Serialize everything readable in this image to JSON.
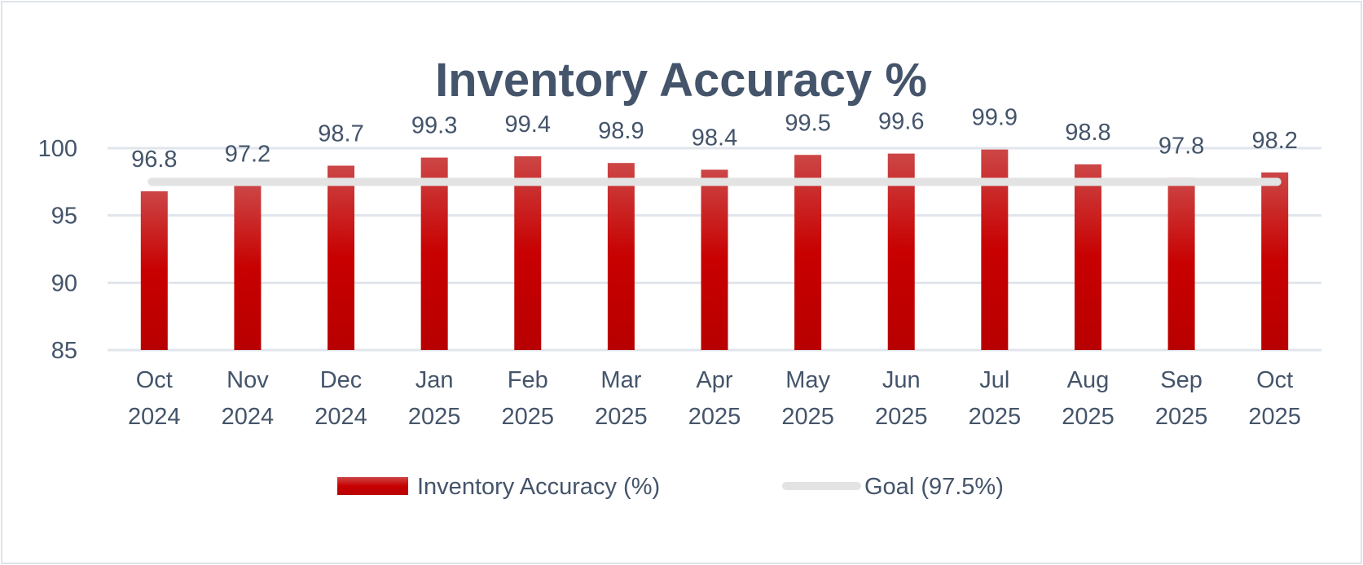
{
  "chart_data": {
    "type": "bar",
    "title": "Inventory Accuracy %",
    "categories": [
      [
        "Oct",
        "2024"
      ],
      [
        "Nov",
        "2024"
      ],
      [
        "Dec",
        "2024"
      ],
      [
        "Jan",
        "2025"
      ],
      [
        "Feb",
        "2025"
      ],
      [
        "Mar",
        "2025"
      ],
      [
        "Apr",
        "2025"
      ],
      [
        "May",
        "2025"
      ],
      [
        "Jun",
        "2025"
      ],
      [
        "Jul",
        "2025"
      ],
      [
        "Aug",
        "2025"
      ],
      [
        "Sep",
        "2025"
      ],
      [
        "Oct",
        "2025"
      ]
    ],
    "series": [
      {
        "name": "Inventory Accuracy (%)",
        "type": "bar",
        "color": "#c00000",
        "values": [
          96.8,
          97.2,
          98.7,
          99.3,
          99.4,
          98.9,
          98.4,
          99.5,
          99.6,
          99.9,
          98.8,
          97.8,
          98.2
        ]
      },
      {
        "name": "Goal (97.5%)",
        "type": "line",
        "color": "#e3e3e3",
        "value": 97.5
      }
    ],
    "ylim": [
      85,
      100
    ],
    "yticks": [
      85,
      90,
      95,
      100
    ],
    "grid": true,
    "legend": "bottom",
    "xlabel": "",
    "ylabel": ""
  }
}
